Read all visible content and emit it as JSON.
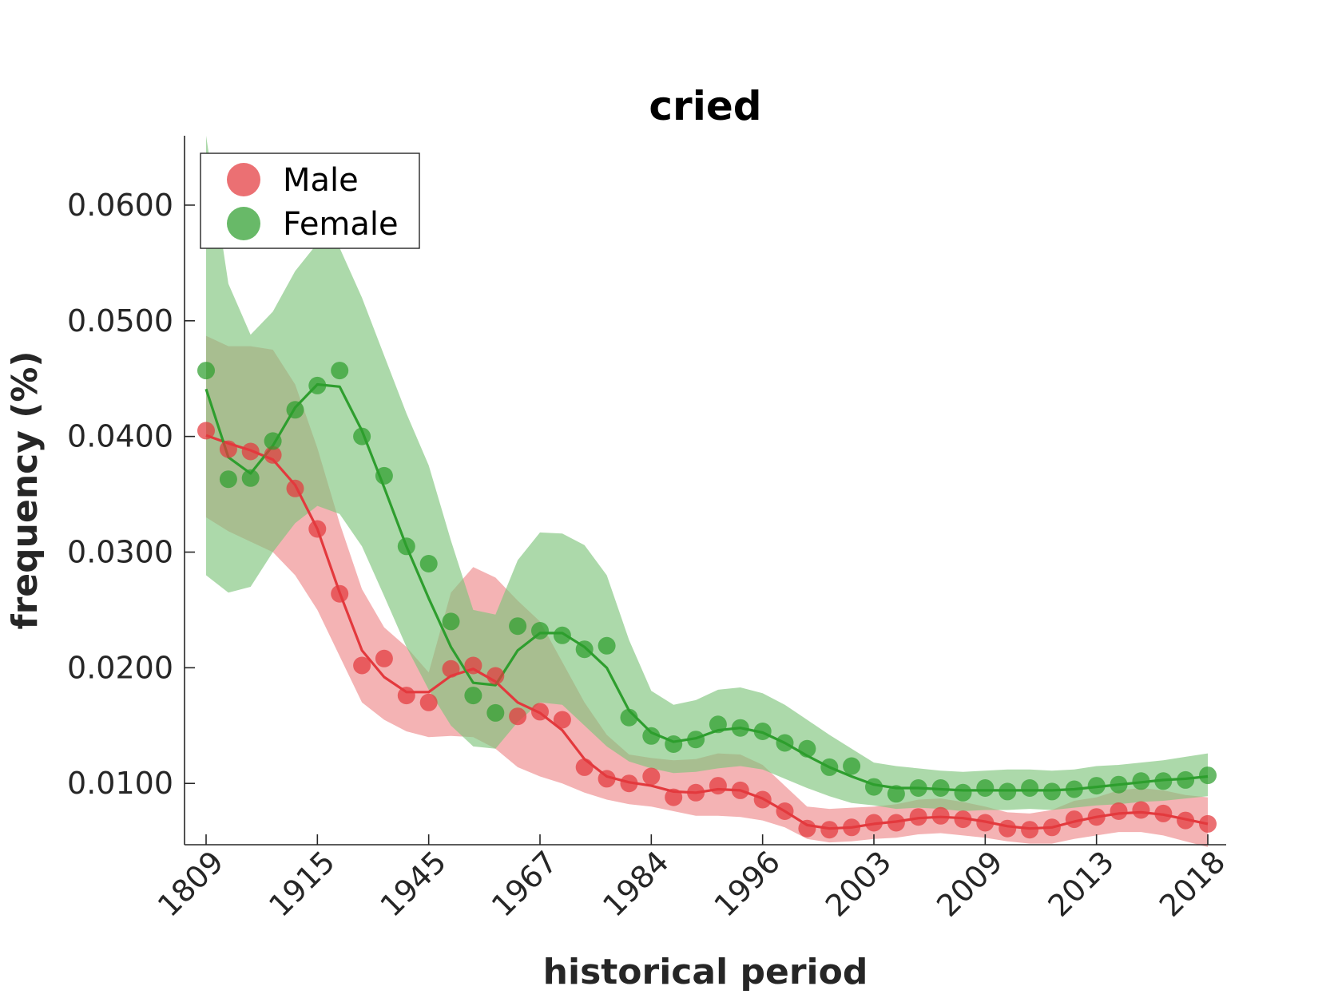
{
  "chart_data": {
    "type": "line",
    "title": "cried",
    "xlabel": "historical period",
    "ylabel": "frequency (%)",
    "x": [
      "1809",
      "",
      "",
      "",
      "",
      "1915",
      "",
      "",
      "",
      "",
      "1945",
      "",
      "",
      "",
      "",
      "1967",
      "",
      "",
      "",
      "",
      "1984",
      "",
      "",
      "",
      "",
      "1996",
      "",
      "",
      "",
      "",
      "2003",
      "",
      "",
      "",
      "",
      "2009",
      "",
      "",
      "",
      "",
      "2013",
      "",
      "",
      "",
      "",
      "2018"
    ],
    "x_ticks": [
      "1809",
      "1915",
      "1945",
      "1967",
      "1984",
      "1996",
      "2003",
      "2009",
      "2013",
      "2018"
    ],
    "y_ticks": [
      "0.0100",
      "0.0200",
      "0.0300",
      "0.0400",
      "0.0500",
      "0.0600"
    ],
    "ylim": [
      0.0047,
      0.066
    ],
    "grid": false,
    "legend_position": "top-left",
    "series": [
      {
        "name": "Male",
        "color": "#e3393d",
        "points": [
          0.0405,
          0.0389,
          0.0387,
          0.0384,
          0.0355,
          0.032,
          0.0264,
          0.0202,
          0.0208,
          0.0176,
          0.017,
          0.0199,
          0.0202,
          0.0193,
          0.0158,
          0.0162,
          0.0155,
          0.0114,
          0.0104,
          0.01,
          0.0106,
          0.0088,
          0.0092,
          0.0098,
          0.0094,
          0.0086,
          0.0076,
          0.0061,
          0.006,
          0.0062,
          0.0066,
          0.0066,
          0.0071,
          0.0072,
          0.0069,
          0.0066,
          0.0061,
          0.006,
          0.0062,
          0.0069,
          0.0071,
          0.0076,
          0.0077,
          0.0074,
          0.0068,
          0.0065
        ],
        "trend": [
          0.0401,
          0.0394,
          0.0388,
          0.038,
          0.0358,
          0.032,
          0.0265,
          0.0215,
          0.0192,
          0.0179,
          0.0179,
          0.0193,
          0.0199,
          0.0188,
          0.017,
          0.0161,
          0.0146,
          0.0121,
          0.0106,
          0.0101,
          0.0098,
          0.0093,
          0.0092,
          0.0095,
          0.0094,
          0.0087,
          0.0076,
          0.0064,
          0.0061,
          0.0062,
          0.0065,
          0.0067,
          0.007,
          0.0071,
          0.007,
          0.0067,
          0.0063,
          0.0061,
          0.0062,
          0.0067,
          0.0071,
          0.0074,
          0.0075,
          0.0073,
          0.0069,
          0.0065
        ],
        "upper": [
          0.0487,
          0.0478,
          0.0478,
          0.0475,
          0.0445,
          0.039,
          0.0325,
          0.0268,
          0.0235,
          0.0218,
          0.0196,
          0.0265,
          0.0287,
          0.0278,
          0.0258,
          0.024,
          0.0205,
          0.017,
          0.0142,
          0.0125,
          0.0122,
          0.012,
          0.0121,
          0.0126,
          0.0125,
          0.0116,
          0.0098,
          0.008,
          0.0078,
          0.0079,
          0.008,
          0.0082,
          0.0086,
          0.0087,
          0.0084,
          0.008,
          0.0075,
          0.0074,
          0.0077,
          0.0085,
          0.0088,
          0.0094,
          0.0096,
          0.0094,
          0.009,
          0.0088
        ],
        "lower": [
          0.033,
          0.0318,
          0.0309,
          0.03,
          0.028,
          0.025,
          0.021,
          0.017,
          0.0155,
          0.0145,
          0.014,
          0.0141,
          0.014,
          0.013,
          0.0114,
          0.0106,
          0.01,
          0.0092,
          0.0086,
          0.0082,
          0.008,
          0.0076,
          0.0072,
          0.0072,
          0.0071,
          0.0068,
          0.0062,
          0.0052,
          0.0049,
          0.005,
          0.0052,
          0.0053,
          0.0056,
          0.0057,
          0.0055,
          0.0053,
          0.005,
          0.0048,
          0.0048,
          0.0052,
          0.0055,
          0.0058,
          0.0058,
          0.0055,
          0.005,
          0.0045
        ]
      },
      {
        "name": "Female",
        "color": "#2e9e2e",
        "points": [
          0.0457,
          0.0363,
          0.0364,
          0.0396,
          0.0423,
          0.0444,
          0.0457,
          0.04,
          0.0366,
          0.0305,
          0.029,
          0.024,
          0.0176,
          0.0161,
          0.0236,
          0.0232,
          0.0228,
          0.0216,
          0.0219,
          0.0157,
          0.0141,
          0.0134,
          0.0138,
          0.0151,
          0.0148,
          0.0145,
          0.0135,
          0.013,
          0.0114,
          0.0115,
          0.0097,
          0.0091,
          0.0096,
          0.0096,
          0.0092,
          0.0096,
          0.0093,
          0.0096,
          0.0093,
          0.0095,
          0.0098,
          0.0099,
          0.0102,
          0.0102,
          0.0103,
          0.0107
        ],
        "trend": [
          0.0441,
          0.0382,
          0.0368,
          0.0392,
          0.0425,
          0.0445,
          0.0443,
          0.0405,
          0.0356,
          0.0305,
          0.026,
          0.0218,
          0.0187,
          0.0185,
          0.0215,
          0.023,
          0.023,
          0.0218,
          0.02,
          0.0163,
          0.0144,
          0.0136,
          0.0139,
          0.0146,
          0.0148,
          0.0144,
          0.0135,
          0.0124,
          0.0114,
          0.0106,
          0.0099,
          0.0096,
          0.0096,
          0.0095,
          0.0094,
          0.0094,
          0.0094,
          0.0094,
          0.0094,
          0.0095,
          0.0097,
          0.0099,
          0.0101,
          0.0103,
          0.0104,
          0.0106
        ],
        "upper": [
          0.066,
          0.0532,
          0.0488,
          0.0508,
          0.0543,
          0.0567,
          0.0563,
          0.052,
          0.047,
          0.042,
          0.0375,
          0.031,
          0.025,
          0.0246,
          0.0293,
          0.0317,
          0.0316,
          0.0306,
          0.028,
          0.0224,
          0.018,
          0.0168,
          0.0172,
          0.0181,
          0.0183,
          0.0178,
          0.0168,
          0.0155,
          0.0142,
          0.013,
          0.0118,
          0.0115,
          0.0113,
          0.0111,
          0.011,
          0.0111,
          0.0112,
          0.0112,
          0.0111,
          0.0112,
          0.0115,
          0.0116,
          0.0118,
          0.012,
          0.0123,
          0.0126
        ],
        "lower": [
          0.028,
          0.0265,
          0.027,
          0.03,
          0.0325,
          0.034,
          0.0333,
          0.0305,
          0.0262,
          0.0218,
          0.0181,
          0.015,
          0.0132,
          0.013,
          0.0153,
          0.017,
          0.0168,
          0.015,
          0.0132,
          0.0119,
          0.0113,
          0.0109,
          0.011,
          0.0113,
          0.0115,
          0.0112,
          0.0104,
          0.0096,
          0.0089,
          0.0083,
          0.0081,
          0.0078,
          0.0079,
          0.0078,
          0.0076,
          0.0077,
          0.0077,
          0.0078,
          0.0077,
          0.0079,
          0.0081,
          0.0082,
          0.0084,
          0.0085,
          0.0087,
          0.0089
        ]
      }
    ]
  }
}
